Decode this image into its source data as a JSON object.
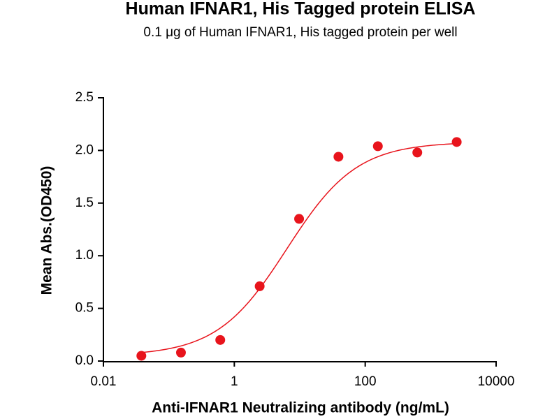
{
  "chart_data": {
    "type": "scatter",
    "title": "Human IFNAR1, His Tagged protein ELISA",
    "subtitle": "0.1 μg of Human IFNAR1, His tagged protein per well",
    "x_label": "Anti-IFNAR1 Neutralizing antibody (ng/mL)",
    "y_label": "Mean Abs.(OD450)",
    "x_scale": "log",
    "series": [
      {
        "color": "#e8141c",
        "x": [
          0.038,
          0.153,
          0.61,
          2.44,
          9.77,
          39,
          156,
          625,
          2500
        ],
        "values": [
          0.05,
          0.08,
          0.2,
          0.71,
          1.35,
          1.94,
          2.04,
          1.98,
          2.08
        ]
      }
    ],
    "xlim": [
      0.01,
      10000
    ],
    "xticks": [
      0.01,
      1,
      100,
      10000
    ],
    "ylim": [
      0,
      2.5
    ],
    "yticks": [
      {
        "value": 0,
        "label": "0.0"
      },
      {
        "value": 0.5,
        "label": "0.5"
      },
      {
        "value": 1,
        "label": "1.0"
      },
      {
        "value": 1.5,
        "label": "1.5"
      },
      {
        "value": 2,
        "label": "2.0"
      },
      {
        "value": 2.5,
        "label": "2.5"
      }
    ],
    "fit_curve": true
  }
}
